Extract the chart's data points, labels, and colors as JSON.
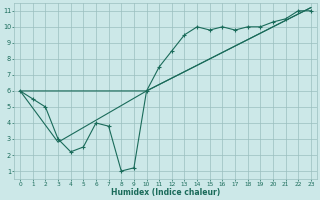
{
  "xlabel": "Humidex (Indice chaleur)",
  "bg_color": "#cce8e8",
  "grid_color": "#9bbfbf",
  "line_color": "#1a6b5a",
  "xlim": [
    -0.5,
    23.5
  ],
  "ylim": [
    0.5,
    11.5
  ],
  "xticks": [
    0,
    1,
    2,
    3,
    4,
    5,
    6,
    7,
    8,
    9,
    10,
    11,
    12,
    13,
    14,
    15,
    16,
    17,
    18,
    19,
    20,
    21,
    22,
    23
  ],
  "yticks": [
    1,
    2,
    3,
    4,
    5,
    6,
    7,
    8,
    9,
    10,
    11
  ],
  "line1_x": [
    0,
    1,
    2,
    3,
    4,
    5,
    6,
    7,
    8,
    9,
    10,
    11,
    12,
    13,
    14,
    15,
    16,
    17,
    18,
    19,
    20,
    21,
    22,
    23
  ],
  "line1_y": [
    6.0,
    5.5,
    5.0,
    3.0,
    2.2,
    2.5,
    4.0,
    3.8,
    1.0,
    1.2,
    6.0,
    7.5,
    8.5,
    9.5,
    10.0,
    9.8,
    10.0,
    9.8,
    10.0,
    10.0,
    10.3,
    10.5,
    11.0,
    11.0
  ],
  "line2_x": [
    0,
    3,
    10,
    23
  ],
  "line2_y": [
    6.0,
    2.8,
    6.0,
    11.2
  ],
  "line3_x": [
    0,
    10,
    23
  ],
  "line3_y": [
    6.0,
    6.0,
    11.2
  ],
  "tick_fontsize": 4.2,
  "xlabel_fontsize": 5.5,
  "marker_size": 3.5,
  "line_width": 0.8
}
